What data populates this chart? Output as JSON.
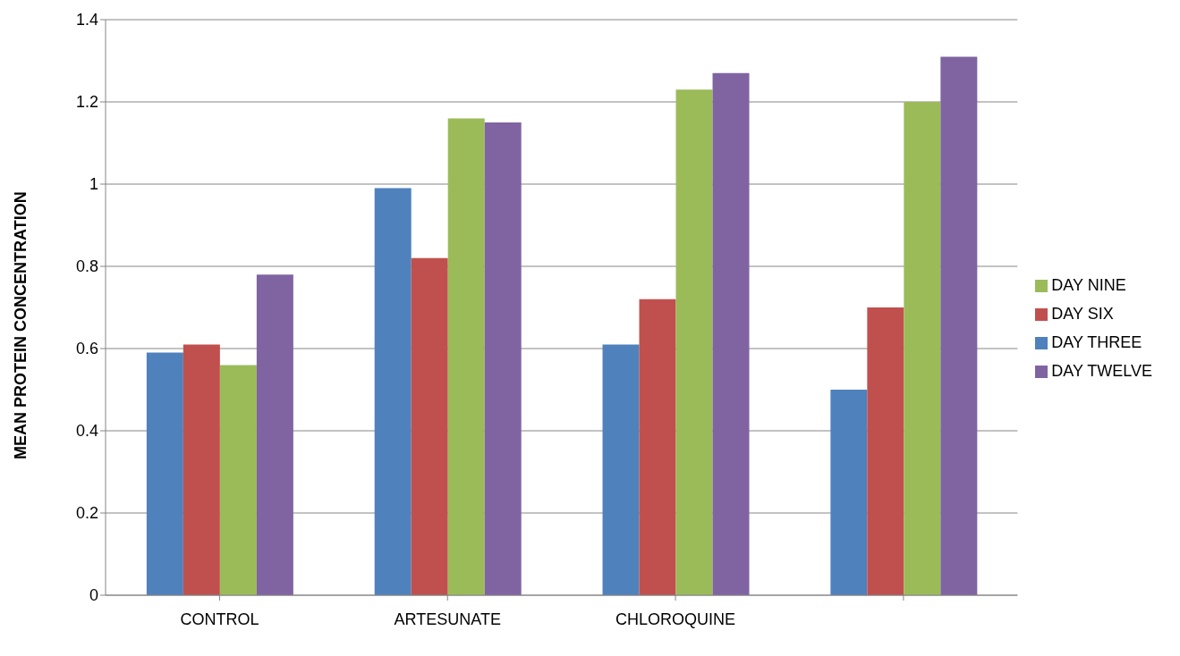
{
  "chart_data": {
    "type": "bar",
    "ylabel": "MEAN PROTEIN CONCENTRATION",
    "categories": [
      "CONTROL",
      "ARTESUNATE",
      "CHLOROQUINE",
      null
    ],
    "series": [
      {
        "name": "DAY THREE",
        "color": "#4f81bd",
        "values": [
          0.59,
          0.99,
          0.61,
          0.5
        ]
      },
      {
        "name": "DAY SIX",
        "color": "#c0504d",
        "values": [
          0.61,
          0.82,
          0.72,
          0.7
        ]
      },
      {
        "name": "DAY NINE",
        "color": "#9bbb59",
        "values": [
          0.56,
          1.16,
          1.23,
          1.2
        ]
      },
      {
        "name": "DAY TWELVE",
        "color": "#8064a2",
        "values": [
          0.78,
          1.15,
          1.27,
          1.31
        ]
      }
    ],
    "ylim": [
      0,
      1.4
    ],
    "yticks": [
      0,
      0.2,
      0.4,
      0.6,
      0.8,
      1,
      1.2,
      1.4
    ],
    "grid": "y",
    "legend": "right"
  }
}
